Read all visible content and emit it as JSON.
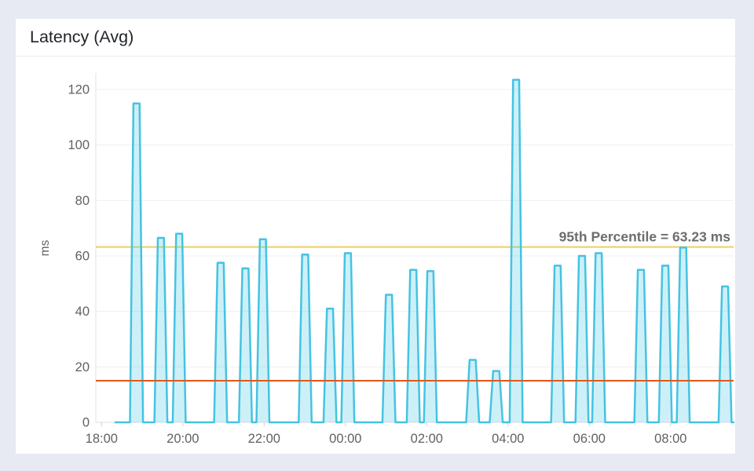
{
  "card": {
    "title": "Latency (Avg)"
  },
  "chart_data": {
    "type": "line",
    "title": "Latency (Avg)",
    "xlabel": "",
    "ylabel": "ms",
    "ylim": [
      0,
      126
    ],
    "yticks": [
      0,
      20,
      40,
      60,
      80,
      100,
      120
    ],
    "xticks": [
      "18:00",
      "20:00",
      "22:00",
      "00:00",
      "02:00",
      "04:00",
      "06:00",
      "08:00"
    ],
    "grid": "horizontal-only",
    "legend": "none",
    "series": {
      "name": "latency-avg",
      "unit": "ms",
      "baseline_value": 0,
      "start_h": 0.34,
      "end_h": 15.55,
      "spike_base_halfwidth_h": 0.16,
      "spike_top_halfwidth_h": 0.075,
      "spikes": [
        {
          "time": "18:52",
          "h": 0.86,
          "ms": 115
        },
        {
          "time": "19:28",
          "h": 1.46,
          "ms": 66.5
        },
        {
          "time": "19:55",
          "h": 1.91,
          "ms": 68
        },
        {
          "time": "20:56",
          "h": 2.93,
          "ms": 57.5
        },
        {
          "time": "21:32",
          "h": 3.54,
          "ms": 55.5
        },
        {
          "time": "21:58",
          "h": 3.97,
          "ms": 66
        },
        {
          "time": "23:01",
          "h": 5.01,
          "ms": 60.5
        },
        {
          "time": "23:37",
          "h": 5.62,
          "ms": 41
        },
        {
          "time": "00:04",
          "h": 6.06,
          "ms": 61
        },
        {
          "time": "01:04",
          "h": 7.07,
          "ms": 46
        },
        {
          "time": "01:40",
          "h": 7.67,
          "ms": 55
        },
        {
          "time": "02:05",
          "h": 8.09,
          "ms": 54.5
        },
        {
          "time": "03:08",
          "h": 9.13,
          "ms": 22.5
        },
        {
          "time": "03:43",
          "h": 9.71,
          "ms": 18.5
        },
        {
          "time": "04:12",
          "h": 10.2,
          "ms": 123.5
        },
        {
          "time": "05:13",
          "h": 11.22,
          "ms": 56.5
        },
        {
          "time": "05:49",
          "h": 11.82,
          "ms": 60
        },
        {
          "time": "06:14",
          "h": 12.23,
          "ms": 61
        },
        {
          "time": "07:16",
          "h": 13.27,
          "ms": 55
        },
        {
          "time": "07:52",
          "h": 13.87,
          "ms": 56.5
        },
        {
          "time": "08:19",
          "h": 14.31,
          "ms": 63
        },
        {
          "time": "09:20",
          "h": 15.34,
          "ms": 49
        }
      ]
    },
    "reference_lines": [
      {
        "name": "95th-percentile",
        "value": 63.23,
        "label": "95th Percentile = 63.23 ms",
        "color": "#ecd05e",
        "above_series": false
      },
      {
        "name": "threshold",
        "value": 15,
        "label": "",
        "color": "#e2571b",
        "above_series": true
      }
    ],
    "colors": {
      "series_stroke": "#45c3e2",
      "series_fill": "rgba(77,200,230,0.28)",
      "gridline": "#efefef",
      "axis_line": "#e0e0e0",
      "tick_mark": "#cfcfcf",
      "tick_label": "#616161",
      "annotation_text": "#6d6d6d",
      "title_text": "#21242b"
    }
  }
}
